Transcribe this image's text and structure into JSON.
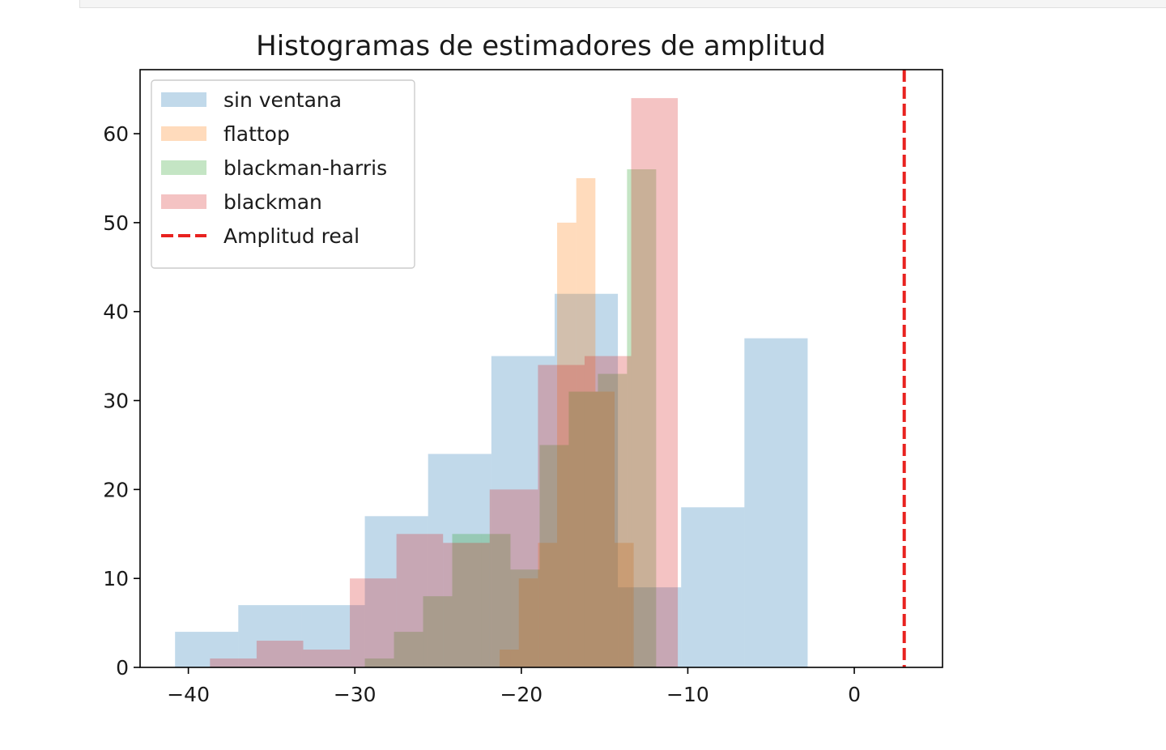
{
  "chart_data": {
    "type": "histogram",
    "title": "Histogramas de estimadores de amplitud",
    "xlabel": "",
    "ylabel": "",
    "xlim": [
      -42.9,
      5.3
    ],
    "ylim": [
      0,
      67.2
    ],
    "xticks": [
      -40,
      -30,
      -20,
      -10,
      0
    ],
    "yticks": [
      0,
      10,
      20,
      30,
      40,
      50,
      60
    ],
    "grid": false,
    "legend_position": "upper-left",
    "series": [
      {
        "name": "sin ventana",
        "color": "#1f77b4",
        "alpha": 0.28,
        "bin_edges": [
          -40.8,
          -37.0,
          -33.2,
          -29.4,
          -25.6,
          -21.8,
          -18.0,
          -14.2,
          -10.4,
          -6.6,
          -2.8
        ],
        "counts": [
          4,
          7,
          7,
          17,
          24,
          35,
          42,
          9,
          18,
          37
        ]
      },
      {
        "name": "flattop",
        "color": "#ff7f0e",
        "alpha": 0.28,
        "bin_edges": [
          -21.3,
          -20.15,
          -19.0,
          -17.85,
          -16.7,
          -15.55,
          -14.4,
          -13.25,
          -12.1
        ],
        "counts": [
          2,
          10,
          14,
          50,
          55,
          31,
          14,
          0
        ]
      },
      {
        "name": "blackman-harris",
        "color": "#2ca02c",
        "alpha": 0.28,
        "bin_edges": [
          -29.4,
          -27.65,
          -25.9,
          -24.15,
          -22.4,
          -20.65,
          -18.9,
          -17.15,
          -15.4,
          -13.65,
          -11.9
        ],
        "counts": [
          1,
          4,
          8,
          15,
          15,
          11,
          25,
          31,
          33,
          56
        ]
      },
      {
        "name": "blackman",
        "color": "#d62728",
        "alpha": 0.28,
        "bin_edges": [
          -38.7,
          -35.9,
          -33.1,
          -30.3,
          -27.5,
          -24.7,
          -21.9,
          -19.0,
          -16.2,
          -13.4,
          -10.6
        ],
        "counts": [
          1,
          3,
          2,
          10,
          15,
          14,
          20,
          34,
          35,
          64
        ]
      }
    ],
    "reference_lines": [
      {
        "name": "Amplitud real",
        "x": 3.0,
        "color": "#e8221f",
        "style": "dashed"
      }
    ]
  }
}
